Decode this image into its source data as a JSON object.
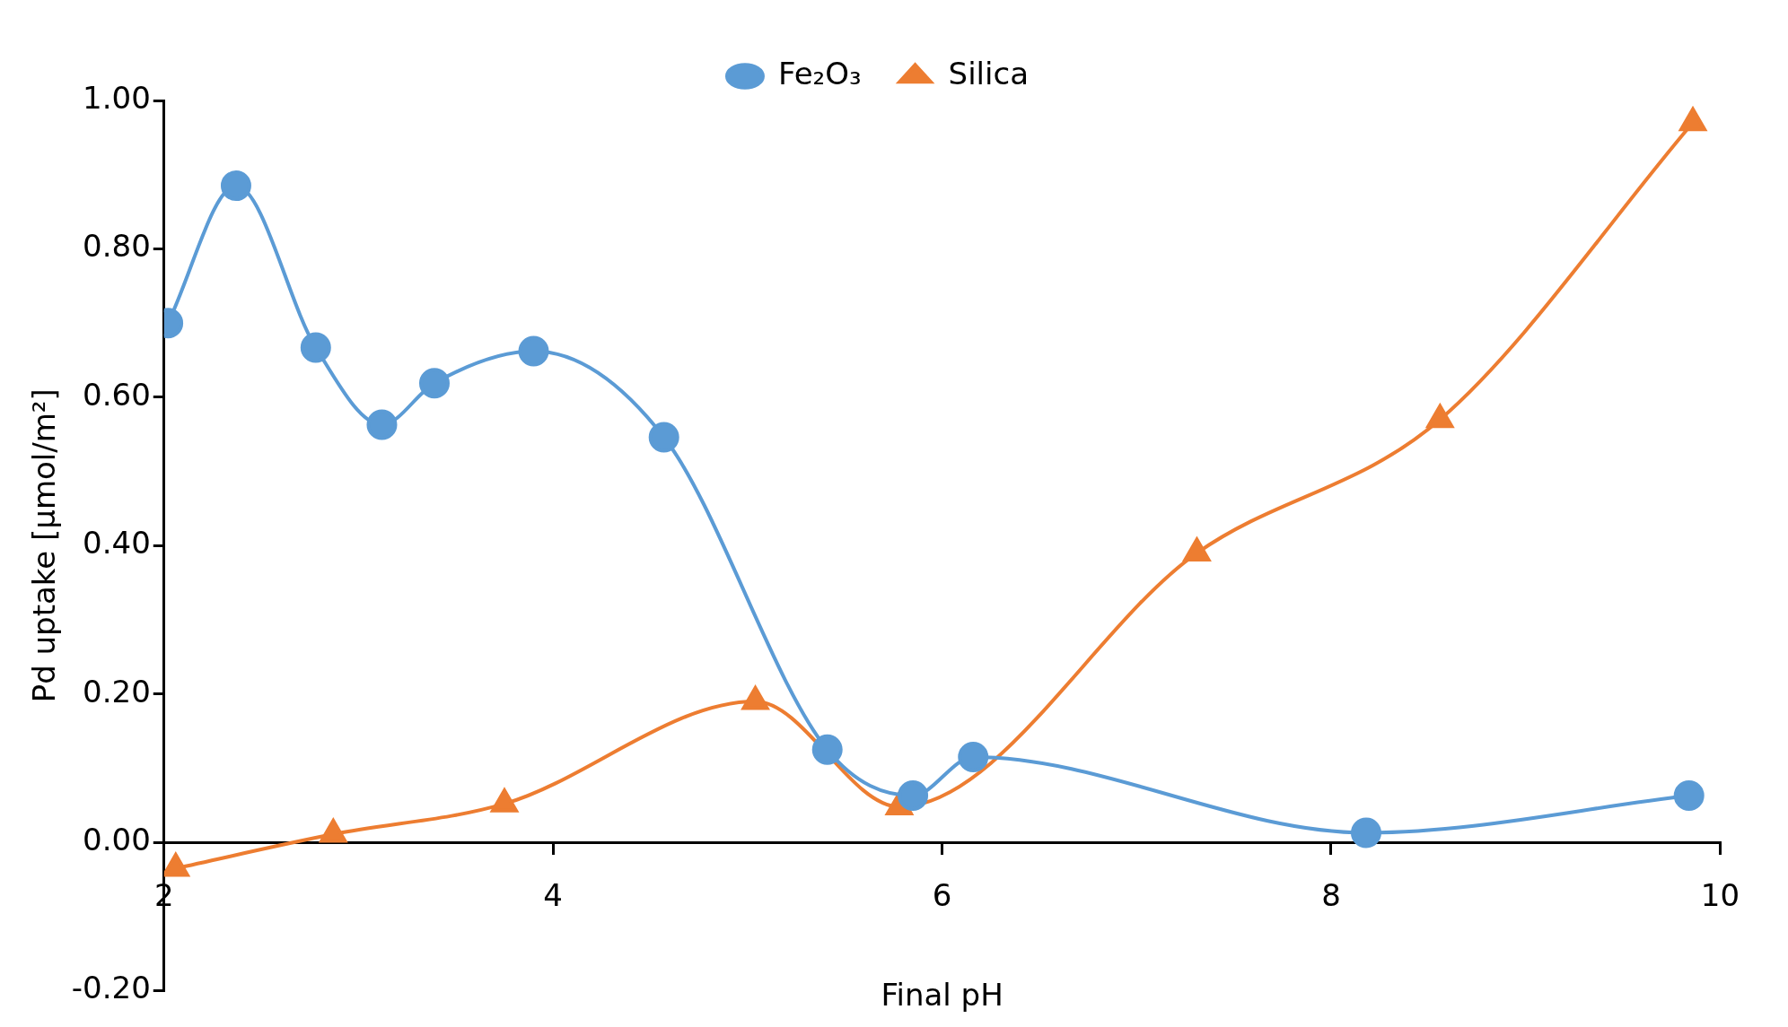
{
  "chart_data": {
    "type": "line",
    "xlabel": "Final pH",
    "ylabel": "Pd uptake [µmol/m²]",
    "xlim": [
      2,
      10
    ],
    "xticks": [
      2,
      4,
      6,
      8,
      10
    ],
    "ylim": [
      -0.2,
      1.0
    ],
    "yticks": [
      {
        "value": -0.2,
        "label": "-0.20"
      },
      {
        "value": 0,
        "label": "0.00"
      },
      {
        "value": 0.2,
        "label": "0.20"
      },
      {
        "value": 0.4,
        "label": "0.40"
      },
      {
        "value": 0.6,
        "label": "0.60"
      },
      {
        "value": 0.8,
        "label": "0.80"
      },
      {
        "value": 1.0,
        "label": "1.00"
      }
    ],
    "grid": false,
    "legend": "top",
    "line_style": "solid",
    "series": [
      {
        "name": "Fe₂O₃",
        "color": "#5b9bd5",
        "marker": "circle",
        "x": [
          2.02,
          2.37,
          2.78,
          3.12,
          3.39,
          3.9,
          4.57,
          5.41,
          5.85,
          6.16,
          8.18,
          9.84
        ],
        "values": [
          0.7,
          0.885,
          0.667,
          0.563,
          0.619,
          0.662,
          0.546,
          0.125,
          0.063,
          0.115,
          0.013,
          0.063
        ]
      },
      {
        "name": "Silica",
        "color": "#ed7d31",
        "marker": "triangle",
        "x": [
          2.06,
          2.87,
          3.75,
          5.04,
          5.78,
          7.31,
          8.56,
          9.86
        ],
        "values": [
          -0.035,
          0.011,
          0.052,
          0.19,
          0.048,
          0.39,
          0.57,
          0.97
        ]
      }
    ]
  }
}
